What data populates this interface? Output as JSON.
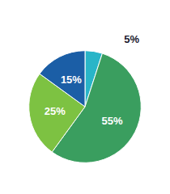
{
  "chart_data": {
    "type": "pie",
    "values": [
      5,
      55,
      25,
      15
    ],
    "value_labels": [
      "5%",
      "55%",
      "25%",
      "15%"
    ],
    "colors": [
      "#29b5c8",
      "#3a9e5f",
      "#7dc242",
      "#1b5ea6"
    ],
    "data_labels": true
  }
}
